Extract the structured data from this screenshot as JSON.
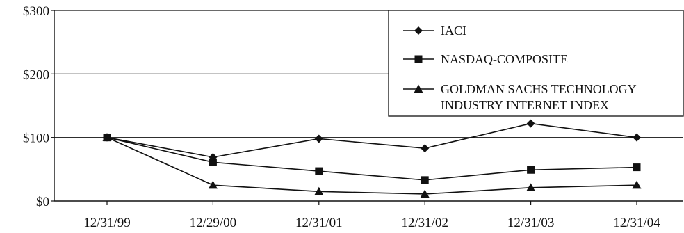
{
  "chart_data": {
    "type": "line",
    "categories": [
      "12/31/99",
      "12/29/00",
      "12/31/01",
      "12/31/02",
      "12/31/03",
      "12/31/04"
    ],
    "ylim": [
      0,
      300
    ],
    "yticks": [
      0,
      100,
      200,
      300
    ],
    "ytick_labels": [
      "$0",
      "$100",
      "$200",
      "$300"
    ],
    "grid": "horizontal",
    "legend_position": "top-right",
    "series": [
      {
        "name": "IACI",
        "legend_lines": [
          "IACI"
        ],
        "marker": "diamond",
        "values": [
          100,
          69,
          98,
          83,
          122,
          100
        ]
      },
      {
        "name": "NASDAQ-COMPOSITE",
        "legend_lines": [
          "NASDAQ-COMPOSITE"
        ],
        "marker": "square",
        "values": [
          100,
          61,
          47,
          33,
          49,
          53
        ]
      },
      {
        "name": "GOLDMAN SACHS TECHNOLOGY INDUSTRY INTERNET INDEX",
        "legend_lines": [
          "GOLDMAN SACHS TECHNOLOGY",
          "INDUSTRY INTERNET INDEX"
        ],
        "marker": "triangle",
        "values": [
          100,
          25,
          15,
          11,
          21,
          25
        ]
      }
    ]
  }
}
